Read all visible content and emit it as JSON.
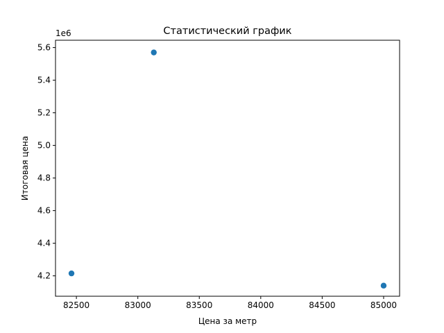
{
  "chart_data": {
    "type": "scatter",
    "title": "Статистический график",
    "xlabel": "Цена за метр",
    "ylabel": "Итоговая цена",
    "y_offset_label": "1e6",
    "y_scale": 1000000,
    "xlim": [
      82330,
      85130
    ],
    "ylim": [
      4075000,
      5645000
    ],
    "x_ticks": [
      82500,
      83000,
      83500,
      84000,
      84500,
      85000
    ],
    "x_tick_labels": [
      "82500",
      "83000",
      "83500",
      "84000",
      "84500",
      "85000"
    ],
    "y_ticks": [
      4200000,
      4400000,
      4600000,
      4800000,
      5000000,
      5200000,
      5400000,
      5600000
    ],
    "y_tick_labels": [
      "4.2",
      "4.4",
      "4.6",
      "4.8",
      "5.0",
      "5.2",
      "5.4",
      "5.6"
    ],
    "grid": false,
    "marker_color": "#1f77b4",
    "points": [
      {
        "x": 82460,
        "y": 4215000
      },
      {
        "x": 83130,
        "y": 5570000
      },
      {
        "x": 85000,
        "y": 4140000
      }
    ]
  }
}
